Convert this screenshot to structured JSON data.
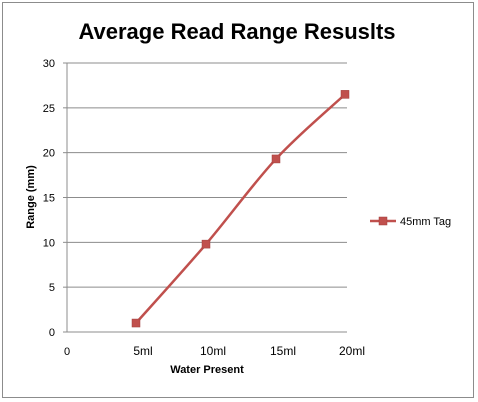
{
  "chart_data": {
    "type": "line",
    "title": "Average Read Range Resuslts",
    "xlabel": "Water Present",
    "ylabel": "Range (mm)",
    "origin_label": "0",
    "categories": [
      "5ml",
      "10ml",
      "15ml",
      "20ml"
    ],
    "series": [
      {
        "name": "45mm Tag",
        "values": [
          1.0,
          9.8,
          19.3,
          26.5
        ],
        "color": "#c0504d"
      }
    ],
    "ylim": [
      0,
      30
    ],
    "yticks": [
      0,
      5,
      10,
      15,
      20,
      25,
      30
    ],
    "grid": true,
    "legend": "right",
    "marker": "square",
    "smooth": true
  }
}
